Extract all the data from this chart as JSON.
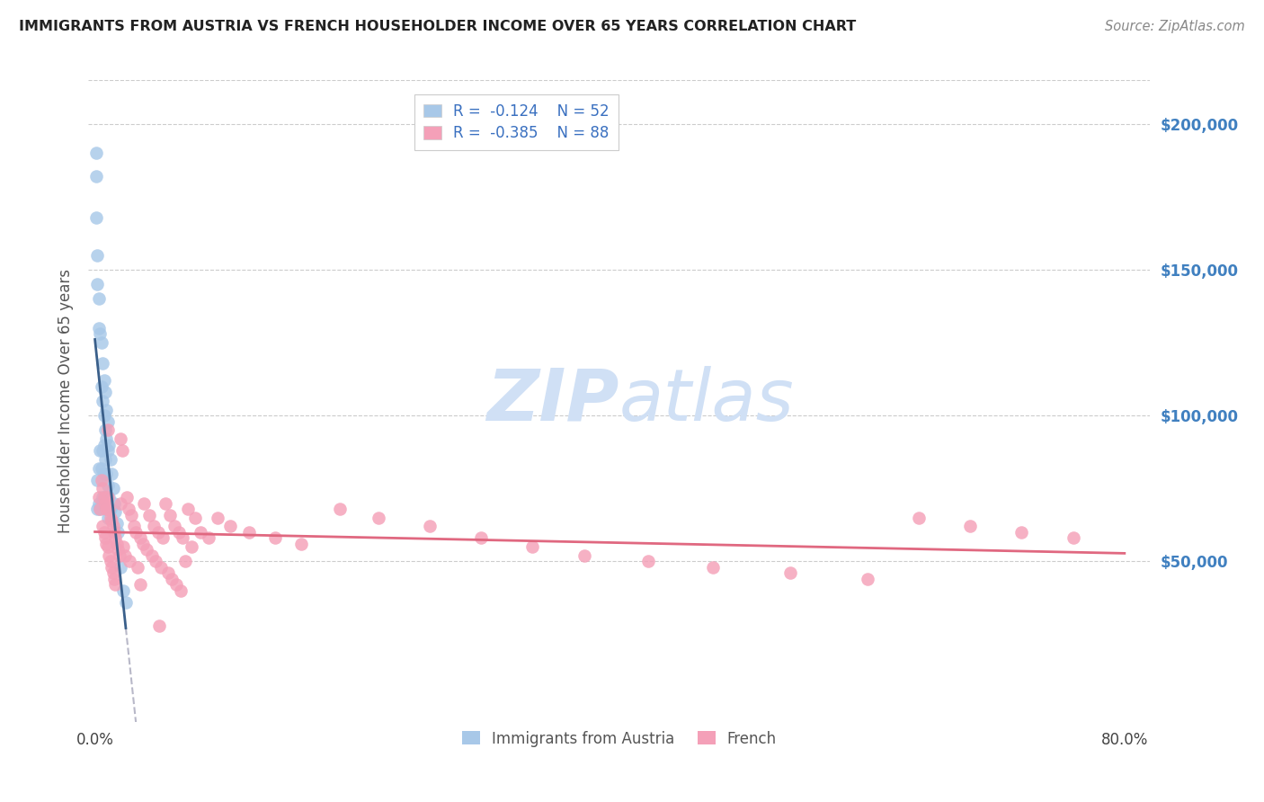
{
  "title": "IMMIGRANTS FROM AUSTRIA VS FRENCH HOUSEHOLDER INCOME OVER 65 YEARS CORRELATION CHART",
  "source": "Source: ZipAtlas.com",
  "ylabel": "Householder Income Over 65 years",
  "ytick_labels": [
    "$50,000",
    "$100,000",
    "$150,000",
    "$200,000"
  ],
  "ytick_values": [
    50000,
    100000,
    150000,
    200000
  ],
  "ylim": [
    -5000,
    215000
  ],
  "xlim": [
    -0.005,
    0.82
  ],
  "austria_color": "#a8c8e8",
  "french_color": "#f4a0b8",
  "austria_line_color": "#3a5f8a",
  "french_line_color": "#e06880",
  "austria_dash_color": "#b8b8c8",
  "watermark_color": "#d0e0f5",
  "background_color": "#ffffff",
  "grid_color": "#cccccc",
  "right_label_color": "#4080c0",
  "title_color": "#222222",
  "source_color": "#888888",
  "ylabel_color": "#555555",
  "legend_label_color": "#3a70c0",
  "bottom_legend_color": "#555555",
  "austria_x": [
    0.001,
    0.001,
    0.001,
    0.002,
    0.002,
    0.002,
    0.002,
    0.003,
    0.003,
    0.003,
    0.003,
    0.004,
    0.004,
    0.004,
    0.005,
    0.005,
    0.005,
    0.005,
    0.006,
    0.006,
    0.006,
    0.006,
    0.007,
    0.007,
    0.007,
    0.007,
    0.007,
    0.008,
    0.008,
    0.008,
    0.008,
    0.009,
    0.009,
    0.009,
    0.009,
    0.01,
    0.01,
    0.01,
    0.01,
    0.011,
    0.011,
    0.012,
    0.012,
    0.013,
    0.014,
    0.015,
    0.016,
    0.017,
    0.018,
    0.02,
    0.022,
    0.024
  ],
  "austria_y": [
    190000,
    182000,
    168000,
    155000,
    145000,
    78000,
    68000,
    140000,
    130000,
    82000,
    70000,
    128000,
    88000,
    68000,
    125000,
    110000,
    82000,
    70000,
    118000,
    105000,
    88000,
    72000,
    112000,
    100000,
    90000,
    80000,
    70000,
    108000,
    95000,
    85000,
    72000,
    102000,
    92000,
    80000,
    68000,
    98000,
    88000,
    76000,
    65000,
    90000,
    72000,
    85000,
    68000,
    80000,
    75000,
    70000,
    67000,
    63000,
    60000,
    48000,
    40000,
    36000
  ],
  "french_x": [
    0.003,
    0.004,
    0.005,
    0.006,
    0.006,
    0.007,
    0.007,
    0.008,
    0.008,
    0.009,
    0.009,
    0.01,
    0.01,
    0.011,
    0.011,
    0.012,
    0.012,
    0.013,
    0.013,
    0.014,
    0.014,
    0.015,
    0.015,
    0.016,
    0.016,
    0.017,
    0.018,
    0.019,
    0.02,
    0.021,
    0.022,
    0.023,
    0.025,
    0.026,
    0.027,
    0.028,
    0.03,
    0.032,
    0.033,
    0.035,
    0.037,
    0.038,
    0.04,
    0.042,
    0.044,
    0.046,
    0.047,
    0.049,
    0.051,
    0.053,
    0.055,
    0.057,
    0.058,
    0.06,
    0.062,
    0.063,
    0.065,
    0.067,
    0.068,
    0.07,
    0.072,
    0.075,
    0.078,
    0.082,
    0.088,
    0.095,
    0.105,
    0.12,
    0.14,
    0.16,
    0.19,
    0.22,
    0.26,
    0.3,
    0.34,
    0.38,
    0.43,
    0.48,
    0.54,
    0.6,
    0.64,
    0.68,
    0.72,
    0.76,
    0.01,
    0.02,
    0.035,
    0.05
  ],
  "french_y": [
    72000,
    68000,
    78000,
    75000,
    62000,
    72000,
    60000,
    70000,
    58000,
    68000,
    56000,
    72000,
    55000,
    68000,
    52000,
    65000,
    50000,
    64000,
    48000,
    62000,
    46000,
    60000,
    44000,
    58000,
    42000,
    56000,
    54000,
    52000,
    92000,
    88000,
    55000,
    52000,
    72000,
    68000,
    50000,
    66000,
    62000,
    60000,
    48000,
    58000,
    56000,
    70000,
    54000,
    66000,
    52000,
    62000,
    50000,
    60000,
    48000,
    58000,
    70000,
    46000,
    66000,
    44000,
    62000,
    42000,
    60000,
    40000,
    58000,
    50000,
    68000,
    55000,
    65000,
    60000,
    58000,
    65000,
    62000,
    60000,
    58000,
    56000,
    68000,
    65000,
    62000,
    58000,
    55000,
    52000,
    50000,
    48000,
    46000,
    44000,
    65000,
    62000,
    60000,
    58000,
    95000,
    70000,
    42000,
    28000
  ]
}
